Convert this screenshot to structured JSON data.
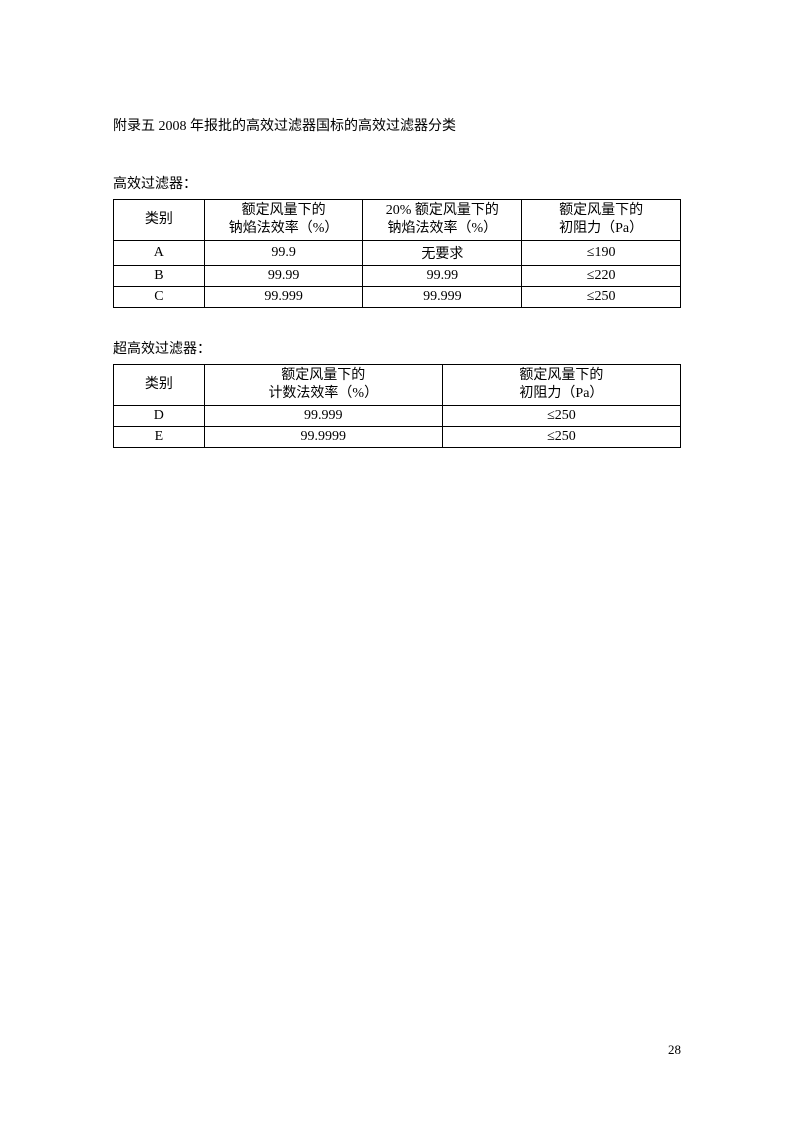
{
  "title": "附录五  2008 年报批的高效过滤器国标的高效过滤器分类",
  "section1": {
    "label": "高效过滤器：",
    "headers": {
      "col1": "类别",
      "col2_line1": "额定风量下的",
      "col2_line2": "钠焰法效率（%）",
      "col3_line1": "20% 额定风量下的",
      "col3_line2": "钠焰法效率（%）",
      "col4_line1": "额定风量下的",
      "col4_line2": "初阻力（Pa）"
    },
    "rows": [
      {
        "category": "A",
        "efficiency": "99.9",
        "efficiency20": "无要求",
        "resistance": "≤190"
      },
      {
        "category": "B",
        "efficiency": "99.99",
        "efficiency20": "99.99",
        "resistance": "≤220"
      },
      {
        "category": "C",
        "efficiency": "99.999",
        "efficiency20": "99.999",
        "resistance": "≤250"
      }
    ]
  },
  "section2": {
    "label": "超高效过滤器：",
    "headers": {
      "col1": "类别",
      "col2_line1": "额定风量下的",
      "col2_line2": "计数法效率（%）",
      "col3_line1": "额定风量下的",
      "col3_line2": "初阻力（Pa）"
    },
    "rows": [
      {
        "category": "D",
        "efficiency": "99.999",
        "resistance": "≤250"
      },
      {
        "category": "E",
        "efficiency": "99.9999",
        "resistance": "≤250"
      }
    ]
  },
  "page_number": "28"
}
